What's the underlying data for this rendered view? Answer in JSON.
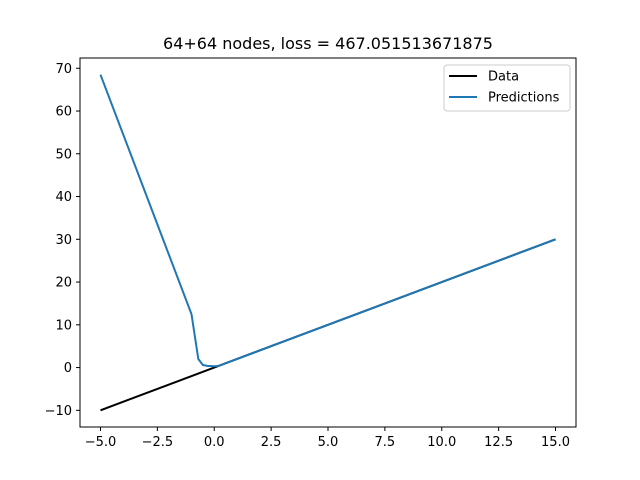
{
  "chart_data": {
    "type": "line",
    "title": "64+64 nodes, loss = 467.051513671875",
    "xlabel": "",
    "ylabel": "",
    "xlim": [
      -5.9,
      15.9
    ],
    "ylim": [
      -13.9,
      72.4
    ],
    "xticks": [
      -5.0,
      -2.5,
      0.0,
      2.5,
      5.0,
      7.5,
      10.0,
      12.5,
      15.0
    ],
    "xtick_labels": [
      "−5.0",
      "−2.5",
      "0.0",
      "2.5",
      "5.0",
      "7.5",
      "10.0",
      "12.5",
      "15.0"
    ],
    "yticks": [
      -10,
      0,
      10,
      20,
      30,
      40,
      50,
      60,
      70
    ],
    "ytick_labels": [
      "−10",
      "0",
      "10",
      "20",
      "30",
      "40",
      "50",
      "60",
      "70"
    ],
    "grid": false,
    "legend_position": "top-right",
    "series": [
      {
        "name": "Data",
        "color": "#000000",
        "x": [
          -5.0,
          15.0
        ],
        "y": [
          -10.0,
          30.0
        ]
      },
      {
        "name": "Predictions",
        "color": "#1f77b4",
        "x": [
          -5.0,
          -4.0,
          -3.0,
          -2.0,
          -1.0,
          -0.7,
          -0.5,
          -0.3,
          0.0,
          0.2,
          0.5,
          2.5,
          5.0,
          7.5,
          10.0,
          12.5,
          15.0
        ],
        "y": [
          68.5,
          54.5,
          40.5,
          26.5,
          12.5,
          2.0,
          0.6,
          0.4,
          0.3,
          0.4,
          1.0,
          5.0,
          10.0,
          15.0,
          20.0,
          25.0,
          30.0
        ]
      }
    ]
  }
}
